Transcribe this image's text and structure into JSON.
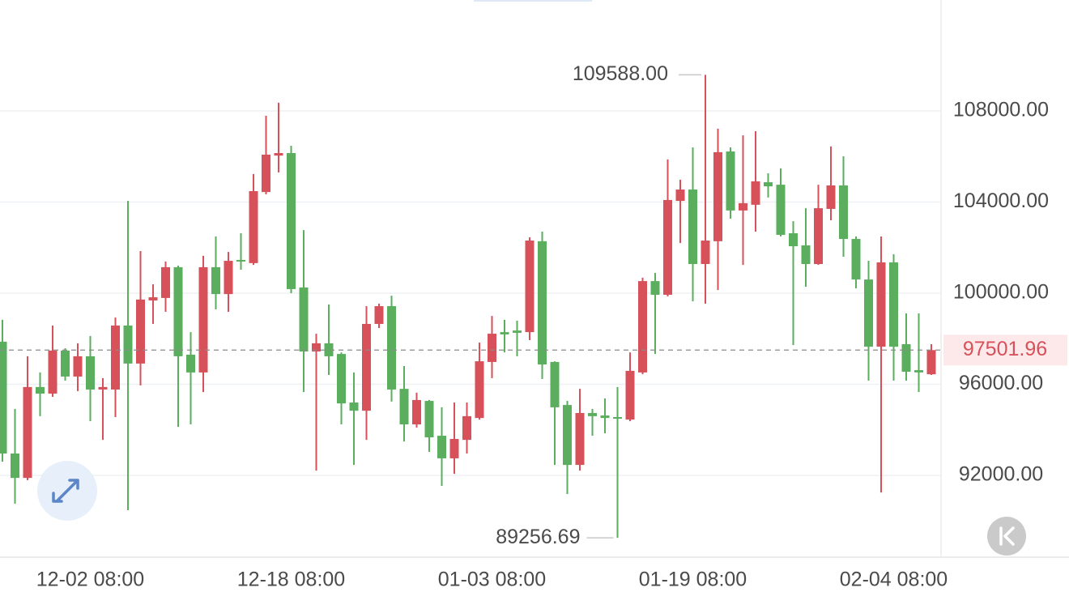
{
  "chart_data": {
    "type": "candlestick",
    "categories": [
      null,
      null,
      null,
      null,
      null,
      null,
      null,
      "12-02 08:00",
      null,
      null,
      null,
      null,
      null,
      null,
      null,
      null,
      null,
      null,
      null,
      null,
      null,
      null,
      null,
      "12-18 08:00",
      null,
      null,
      null,
      null,
      null,
      null,
      null,
      null,
      null,
      null,
      null,
      null,
      null,
      null,
      null,
      "01-03 08:00",
      null,
      null,
      null,
      null,
      null,
      null,
      null,
      null,
      null,
      null,
      null,
      null,
      null,
      null,
      null,
      "01-19 08:00",
      null,
      null,
      null,
      null,
      null,
      null,
      null,
      null,
      null,
      null,
      null,
      null,
      null,
      null,
      null,
      "02-04 08:00",
      null,
      null,
      null
    ],
    "open": [
      97870,
      92960,
      91890,
      95880,
      95590,
      97480,
      96340,
      97230,
      95770,
      95770,
      98580,
      96910,
      99680,
      99790,
      101140,
      97300,
      96520,
      101140,
      99960,
      101460,
      101320,
      104440,
      106040,
      106150,
      100250,
      97440,
      97800,
      97330,
      95200,
      94840,
      98650,
      99430,
      95800,
      94240,
      95270,
      93740,
      92750,
      93560,
      94520,
      96980,
      98290,
      98360,
      98290,
      102280,
      96980,
      95090,
      92460,
      94740,
      94630,
      94560,
      94450,
      96520,
      100530,
      99930,
      104050,
      104550,
      101280,
      102280,
      106220,
      103630,
      103880,
      104870,
      104760,
      102630,
      102100,
      101280,
      103700,
      104730,
      102380,
      100600,
      97650,
      101350,
      97760,
      96620,
      96440
    ],
    "high": [
      98830,
      94920,
      97230,
      96520,
      98580,
      97580,
      97800,
      98120,
      96270,
      98930,
      104050,
      101850,
      100390,
      101390,
      101210,
      98290,
      101640,
      102490,
      101810,
      102630,
      105230,
      107790,
      108360,
      106470,
      102770,
      98220,
      99500,
      97400,
      96520,
      99430,
      99540,
      99890,
      96800,
      95630,
      95310,
      94990,
      95200,
      95200,
      97830,
      99000,
      98830,
      98790,
      102450,
      102700,
      97010,
      95270,
      95800,
      94920,
      95380,
      95880,
      97400,
      100680,
      100890,
      105870,
      104980,
      106400,
      109588,
      107220,
      106400,
      106930,
      107110,
      105260,
      105480,
      103160,
      103730,
      104760,
      106440,
      106010,
      102490,
      101420,
      102490,
      101710,
      99110,
      99110,
      97760
    ],
    "low": [
      92600,
      90760,
      91790,
      94600,
      95450,
      96160,
      95700,
      94380,
      93560,
      94560,
      90470,
      95950,
      98650,
      99180,
      94130,
      94240,
      95660,
      99290,
      99180,
      101030,
      101240,
      104340,
      105300,
      100000,
      95660,
      92210,
      96410,
      94240,
      92460,
      93560,
      98470,
      95240,
      93490,
      94100,
      93030,
      91540,
      92070,
      92960,
      94450,
      96270,
      97400,
      97230,
      97940,
      96230,
      92460,
      91180,
      92210,
      93740,
      93850,
      89256.69,
      94380,
      96440,
      97330,
      99860,
      102200,
      99640,
      99540,
      100140,
      103270,
      101240,
      102700,
      104200,
      102490,
      97720,
      100280,
      101240,
      103200,
      101600,
      100210,
      96160,
      91250,
      96160,
      96160,
      95660,
      96410
    ],
    "close": [
      92960,
      91890,
      95880,
      95590,
      97480,
      96340,
      97230,
      95770,
      95880,
      98580,
      96910,
      99720,
      99820,
      101140,
      97230,
      96520,
      101140,
      99960,
      101420,
      101390,
      104480,
      106080,
      106150,
      100180,
      97440,
      97800,
      97230,
      95160,
      94840,
      98650,
      99430,
      95770,
      94240,
      95310,
      93670,
      92750,
      93600,
      94600,
      97010,
      98220,
      98190,
      98260,
      102310,
      96870,
      94990,
      92460,
      94740,
      94600,
      94520,
      94490,
      96590,
      100530,
      99930,
      104090,
      104550,
      101280,
      102310,
      106190,
      103630,
      103950,
      104910,
      104690,
      102560,
      102060,
      101280,
      103730,
      104730,
      102380,
      100600,
      97650,
      101350,
      97650,
      96550,
      96520,
      97501.96
    ],
    "up_color": "#d6515a",
    "down_color": "#5aae5e",
    "ylim": [
      88410,
      112870
    ],
    "yticks": [
      {
        "value": 92000,
        "label": "92000.00"
      },
      {
        "value": 96000,
        "label": "96000.00"
      },
      {
        "value": 100000,
        "label": "100000.00"
      },
      {
        "value": 104000,
        "label": "104000.00"
      },
      {
        "value": 108000,
        "label": "108000.00"
      }
    ],
    "grid": true,
    "last_price": 97501.96,
    "max_label": "109588.00",
    "min_label": "89256.69"
  }
}
